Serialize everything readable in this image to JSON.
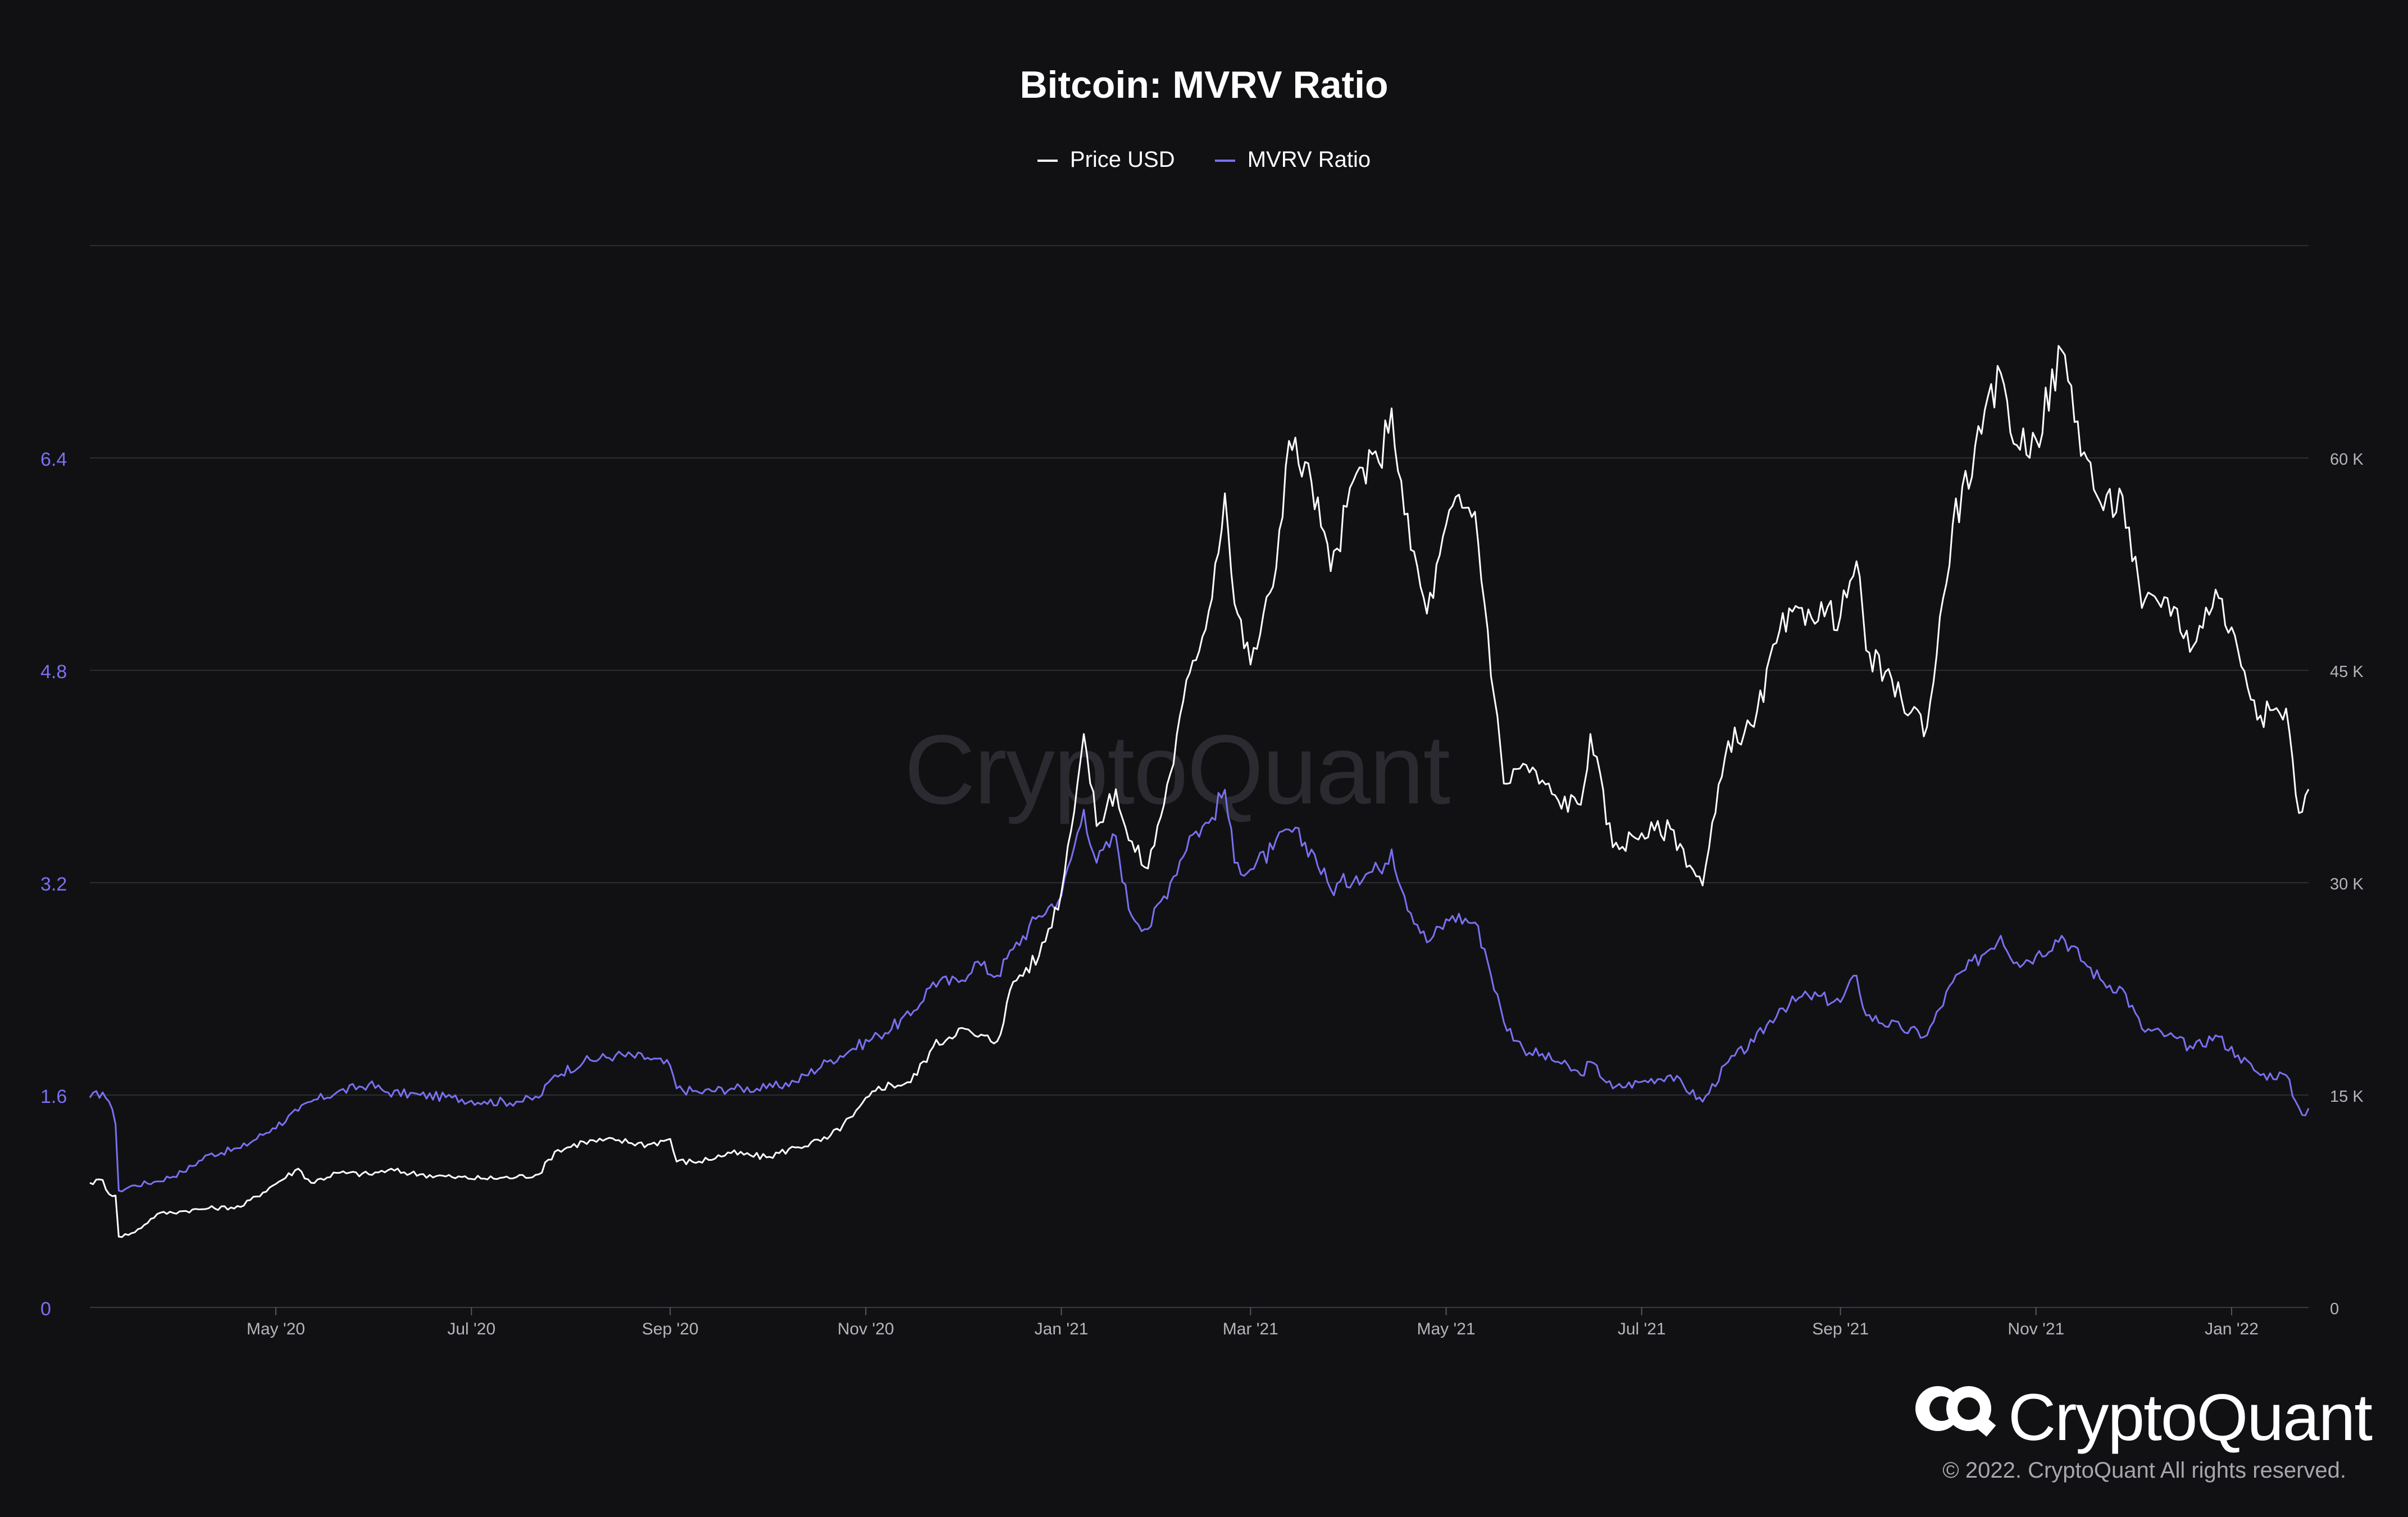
{
  "title": "Bitcoin: MVRV Ratio",
  "legend": [
    {
      "label": "Price USD",
      "color": "#ffffff"
    },
    {
      "label": "MVRV Ratio",
      "color": "#7a71f0"
    }
  ],
  "watermark": "CryptoQuant",
  "brand": {
    "name": "CryptoQuant",
    "copyright": "© 2022. CryptoQuant All rights reserved."
  },
  "colors": {
    "background": "#111114",
    "grid": "#2c2c33",
    "mvrv": "#7a71f0",
    "price": "#ffffff",
    "axis_text": "#b4b4bb"
  },
  "chart_data": {
    "type": "line",
    "title": "Bitcoin: MVRV Ratio",
    "x_ticks": [
      "May '20",
      "Jul '20",
      "Sep '20",
      "Nov '20",
      "Jan '21",
      "Mar '21",
      "May '21",
      "Jul '21",
      "Sep '21",
      "Nov '21",
      "Jan '22"
    ],
    "x_tick_dates": [
      "2020-05-01",
      "2020-07-01",
      "2020-09-01",
      "2020-11-01",
      "2021-01-01",
      "2021-03-01",
      "2021-05-01",
      "2021-07-01",
      "2021-09-01",
      "2021-11-01",
      "2022-01-01"
    ],
    "x_range": [
      "2020-03-04",
      "2022-01-25"
    ],
    "y_left": {
      "ticks": [
        "0",
        "1.6",
        "3.2",
        "4.8",
        "6.4"
      ],
      "tick_values": [
        0,
        1.6,
        3.2,
        4.8,
        6.4
      ],
      "range": [
        0,
        8
      ],
      "color": "#7a71f0"
    },
    "y_right": {
      "ticks": [
        "0",
        "15 K",
        "30 K",
        "45 K",
        "60 K"
      ],
      "tick_values": [
        0,
        15000,
        30000,
        45000,
        60000
      ],
      "range": [
        0,
        75000
      ]
    },
    "grid": true,
    "legend_position": "top-center",
    "series": [
      {
        "name": "MVRV Ratio",
        "axis": "left",
        "color": "#7a71f0",
        "points": [
          [
            "2020-03-04",
            1.58
          ],
          [
            "2020-03-08",
            1.62
          ],
          [
            "2020-03-10",
            1.55
          ],
          [
            "2020-03-12",
            1.38
          ],
          [
            "2020-03-13",
            0.88
          ],
          [
            "2020-03-18",
            0.92
          ],
          [
            "2020-03-25",
            0.95
          ],
          [
            "2020-04-02",
            1.02
          ],
          [
            "2020-04-10",
            1.15
          ],
          [
            "2020-04-20",
            1.2
          ],
          [
            "2020-04-30",
            1.35
          ],
          [
            "2020-05-08",
            1.48
          ],
          [
            "2020-05-12",
            1.55
          ],
          [
            "2020-05-20",
            1.62
          ],
          [
            "2020-05-30",
            1.68
          ],
          [
            "2020-06-05",
            1.62
          ],
          [
            "2020-06-15",
            1.6
          ],
          [
            "2020-06-25",
            1.58
          ],
          [
            "2020-07-05",
            1.55
          ],
          [
            "2020-07-15",
            1.55
          ],
          [
            "2020-07-22",
            1.58
          ],
          [
            "2020-07-27",
            1.75
          ],
          [
            "2020-08-05",
            1.85
          ],
          [
            "2020-08-15",
            1.9
          ],
          [
            "2020-08-25",
            1.88
          ],
          [
            "2020-09-01",
            1.82
          ],
          [
            "2020-09-03",
            1.65
          ],
          [
            "2020-09-10",
            1.62
          ],
          [
            "2020-09-20",
            1.65
          ],
          [
            "2020-10-01",
            1.65
          ],
          [
            "2020-10-10",
            1.7
          ],
          [
            "2020-10-20",
            1.85
          ],
          [
            "2020-10-28",
            1.95
          ],
          [
            "2020-11-05",
            2.05
          ],
          [
            "2020-11-15",
            2.2
          ],
          [
            "2020-11-22",
            2.45
          ],
          [
            "2020-11-30",
            2.45
          ],
          [
            "2020-12-05",
            2.6
          ],
          [
            "2020-12-12",
            2.5
          ],
          [
            "2020-12-17",
            2.7
          ],
          [
            "2020-12-25",
            2.95
          ],
          [
            "2021-01-01",
            3.1
          ],
          [
            "2021-01-08",
            3.75
          ],
          [
            "2021-01-12",
            3.35
          ],
          [
            "2021-01-18",
            3.55
          ],
          [
            "2021-01-22",
            3.0
          ],
          [
            "2021-01-28",
            2.85
          ],
          [
            "2021-02-04",
            3.2
          ],
          [
            "2021-02-10",
            3.55
          ],
          [
            "2021-02-16",
            3.65
          ],
          [
            "2021-02-21",
            3.9
          ],
          [
            "2021-02-24",
            3.35
          ],
          [
            "2021-03-01",
            3.3
          ],
          [
            "2021-03-08",
            3.45
          ],
          [
            "2021-03-13",
            3.6
          ],
          [
            "2021-03-20",
            3.45
          ],
          [
            "2021-03-26",
            3.15
          ],
          [
            "2021-04-03",
            3.25
          ],
          [
            "2021-04-10",
            3.3
          ],
          [
            "2021-04-14",
            3.45
          ],
          [
            "2021-04-18",
            3.1
          ],
          [
            "2021-04-25",
            2.75
          ],
          [
            "2021-05-03",
            2.95
          ],
          [
            "2021-05-10",
            2.9
          ],
          [
            "2021-05-13",
            2.7
          ],
          [
            "2021-05-19",
            2.15
          ],
          [
            "2021-05-25",
            1.95
          ],
          [
            "2021-06-05",
            1.85
          ],
          [
            "2021-06-12",
            1.75
          ],
          [
            "2021-06-15",
            1.85
          ],
          [
            "2021-06-22",
            1.65
          ],
          [
            "2021-07-01",
            1.7
          ],
          [
            "2021-07-10",
            1.75
          ],
          [
            "2021-07-20",
            1.55
          ],
          [
            "2021-07-28",
            1.85
          ],
          [
            "2021-08-05",
            2.0
          ],
          [
            "2021-08-13",
            2.25
          ],
          [
            "2021-08-22",
            2.35
          ],
          [
            "2021-09-01",
            2.3
          ],
          [
            "2021-09-06",
            2.5
          ],
          [
            "2021-09-09",
            2.2
          ],
          [
            "2021-09-20",
            2.1
          ],
          [
            "2021-09-28",
            2.05
          ],
          [
            "2021-10-06",
            2.45
          ],
          [
            "2021-10-15",
            2.65
          ],
          [
            "2021-10-21",
            2.8
          ],
          [
            "2021-10-26",
            2.6
          ],
          [
            "2021-11-01",
            2.65
          ],
          [
            "2021-11-09",
            2.8
          ],
          [
            "2021-11-16",
            2.6
          ],
          [
            "2021-11-22",
            2.45
          ],
          [
            "2021-11-28",
            2.4
          ],
          [
            "2021-12-04",
            2.1
          ],
          [
            "2021-12-12",
            2.05
          ],
          [
            "2021-12-20",
            1.95
          ],
          [
            "2021-12-27",
            2.05
          ],
          [
            "2022-01-03",
            1.9
          ],
          [
            "2022-01-10",
            1.75
          ],
          [
            "2022-01-18",
            1.75
          ],
          [
            "2022-01-21",
            1.55
          ],
          [
            "2022-01-23",
            1.45
          ],
          [
            "2022-01-25",
            1.5
          ]
        ]
      },
      {
        "name": "Price USD",
        "axis": "right",
        "color": "#ffffff",
        "points": [
          [
            "2020-03-04",
            8800
          ],
          [
            "2020-03-08",
            9000
          ],
          [
            "2020-03-10",
            8000
          ],
          [
            "2020-03-12",
            7900
          ],
          [
            "2020-03-13",
            5000
          ],
          [
            "2020-03-18",
            5300
          ],
          [
            "2020-03-25",
            6600
          ],
          [
            "2020-04-02",
            6800
          ],
          [
            "2020-04-10",
            7000
          ],
          [
            "2020-04-20",
            7100
          ],
          [
            "2020-04-30",
            8600
          ],
          [
            "2020-05-08",
            9800
          ],
          [
            "2020-05-12",
            8800
          ],
          [
            "2020-05-20",
            9500
          ],
          [
            "2020-05-30",
            9400
          ],
          [
            "2020-06-05",
            9700
          ],
          [
            "2020-06-15",
            9400
          ],
          [
            "2020-06-25",
            9200
          ],
          [
            "2020-07-05",
            9100
          ],
          [
            "2020-07-15",
            9200
          ],
          [
            "2020-07-22",
            9400
          ],
          [
            "2020-07-27",
            11000
          ],
          [
            "2020-08-05",
            11700
          ],
          [
            "2020-08-15",
            11800
          ],
          [
            "2020-08-25",
            11500
          ],
          [
            "2020-09-01",
            11900
          ],
          [
            "2020-09-03",
            10300
          ],
          [
            "2020-09-10",
            10300
          ],
          [
            "2020-09-20",
            10900
          ],
          [
            "2020-10-01",
            10600
          ],
          [
            "2020-10-10",
            11300
          ],
          [
            "2020-10-20",
            11900
          ],
          [
            "2020-10-28",
            13500
          ],
          [
            "2020-11-05",
            15600
          ],
          [
            "2020-11-15",
            15900
          ],
          [
            "2020-11-22",
            18400
          ],
          [
            "2020-11-30",
            19700
          ],
          [
            "2020-12-05",
            19200
          ],
          [
            "2020-12-12",
            18800
          ],
          [
            "2020-12-17",
            23000
          ],
          [
            "2020-12-25",
            24800
          ],
          [
            "2021-01-01",
            29300
          ],
          [
            "2021-01-08",
            40500
          ],
          [
            "2021-01-12",
            34000
          ],
          [
            "2021-01-18",
            36600
          ],
          [
            "2021-01-22",
            33000
          ],
          [
            "2021-01-28",
            31000
          ],
          [
            "2021-02-04",
            37700
          ],
          [
            "2021-02-10",
            44800
          ],
          [
            "2021-02-16",
            49200
          ],
          [
            "2021-02-21",
            57500
          ],
          [
            "2021-02-24",
            49700
          ],
          [
            "2021-03-01",
            45400
          ],
          [
            "2021-03-08",
            50900
          ],
          [
            "2021-03-13",
            61200
          ],
          [
            "2021-03-20",
            58300
          ],
          [
            "2021-03-26",
            52000
          ],
          [
            "2021-04-03",
            58900
          ],
          [
            "2021-04-10",
            59700
          ],
          [
            "2021-04-14",
            63500
          ],
          [
            "2021-04-18",
            56000
          ],
          [
            "2021-04-25",
            49000
          ],
          [
            "2021-05-03",
            56600
          ],
          [
            "2021-05-10",
            56200
          ],
          [
            "2021-05-13",
            49700
          ],
          [
            "2021-05-19",
            37000
          ],
          [
            "2021-05-25",
            38400
          ],
          [
            "2021-06-05",
            35800
          ],
          [
            "2021-06-12",
            35500
          ],
          [
            "2021-06-15",
            40500
          ],
          [
            "2021-06-22",
            32500
          ],
          [
            "2021-07-01",
            33500
          ],
          [
            "2021-07-10",
            33800
          ],
          [
            "2021-07-20",
            29800
          ],
          [
            "2021-07-28",
            40000
          ],
          [
            "2021-08-05",
            41000
          ],
          [
            "2021-08-13",
            47800
          ],
          [
            "2021-08-22",
            49300
          ],
          [
            "2021-09-01",
            48800
          ],
          [
            "2021-09-06",
            52700
          ],
          [
            "2021-09-09",
            46400
          ],
          [
            "2021-09-20",
            43000
          ],
          [
            "2021-09-28",
            41000
          ],
          [
            "2021-10-06",
            55300
          ],
          [
            "2021-10-15",
            61700
          ],
          [
            "2021-10-21",
            66000
          ],
          [
            "2021-10-26",
            60900
          ],
          [
            "2021-11-01",
            61300
          ],
          [
            "2021-11-09",
            67600
          ],
          [
            "2021-11-16",
            60400
          ],
          [
            "2021-11-22",
            56300
          ],
          [
            "2021-11-28",
            57300
          ],
          [
            "2021-12-04",
            49400
          ],
          [
            "2021-12-12",
            50100
          ],
          [
            "2021-12-20",
            46700
          ],
          [
            "2021-12-27",
            50700
          ],
          [
            "2022-01-03",
            46400
          ],
          [
            "2022-01-10",
            41800
          ],
          [
            "2022-01-18",
            42300
          ],
          [
            "2022-01-21",
            36200
          ],
          [
            "2022-01-23",
            35000
          ],
          [
            "2022-01-25",
            36600
          ]
        ]
      }
    ]
  }
}
